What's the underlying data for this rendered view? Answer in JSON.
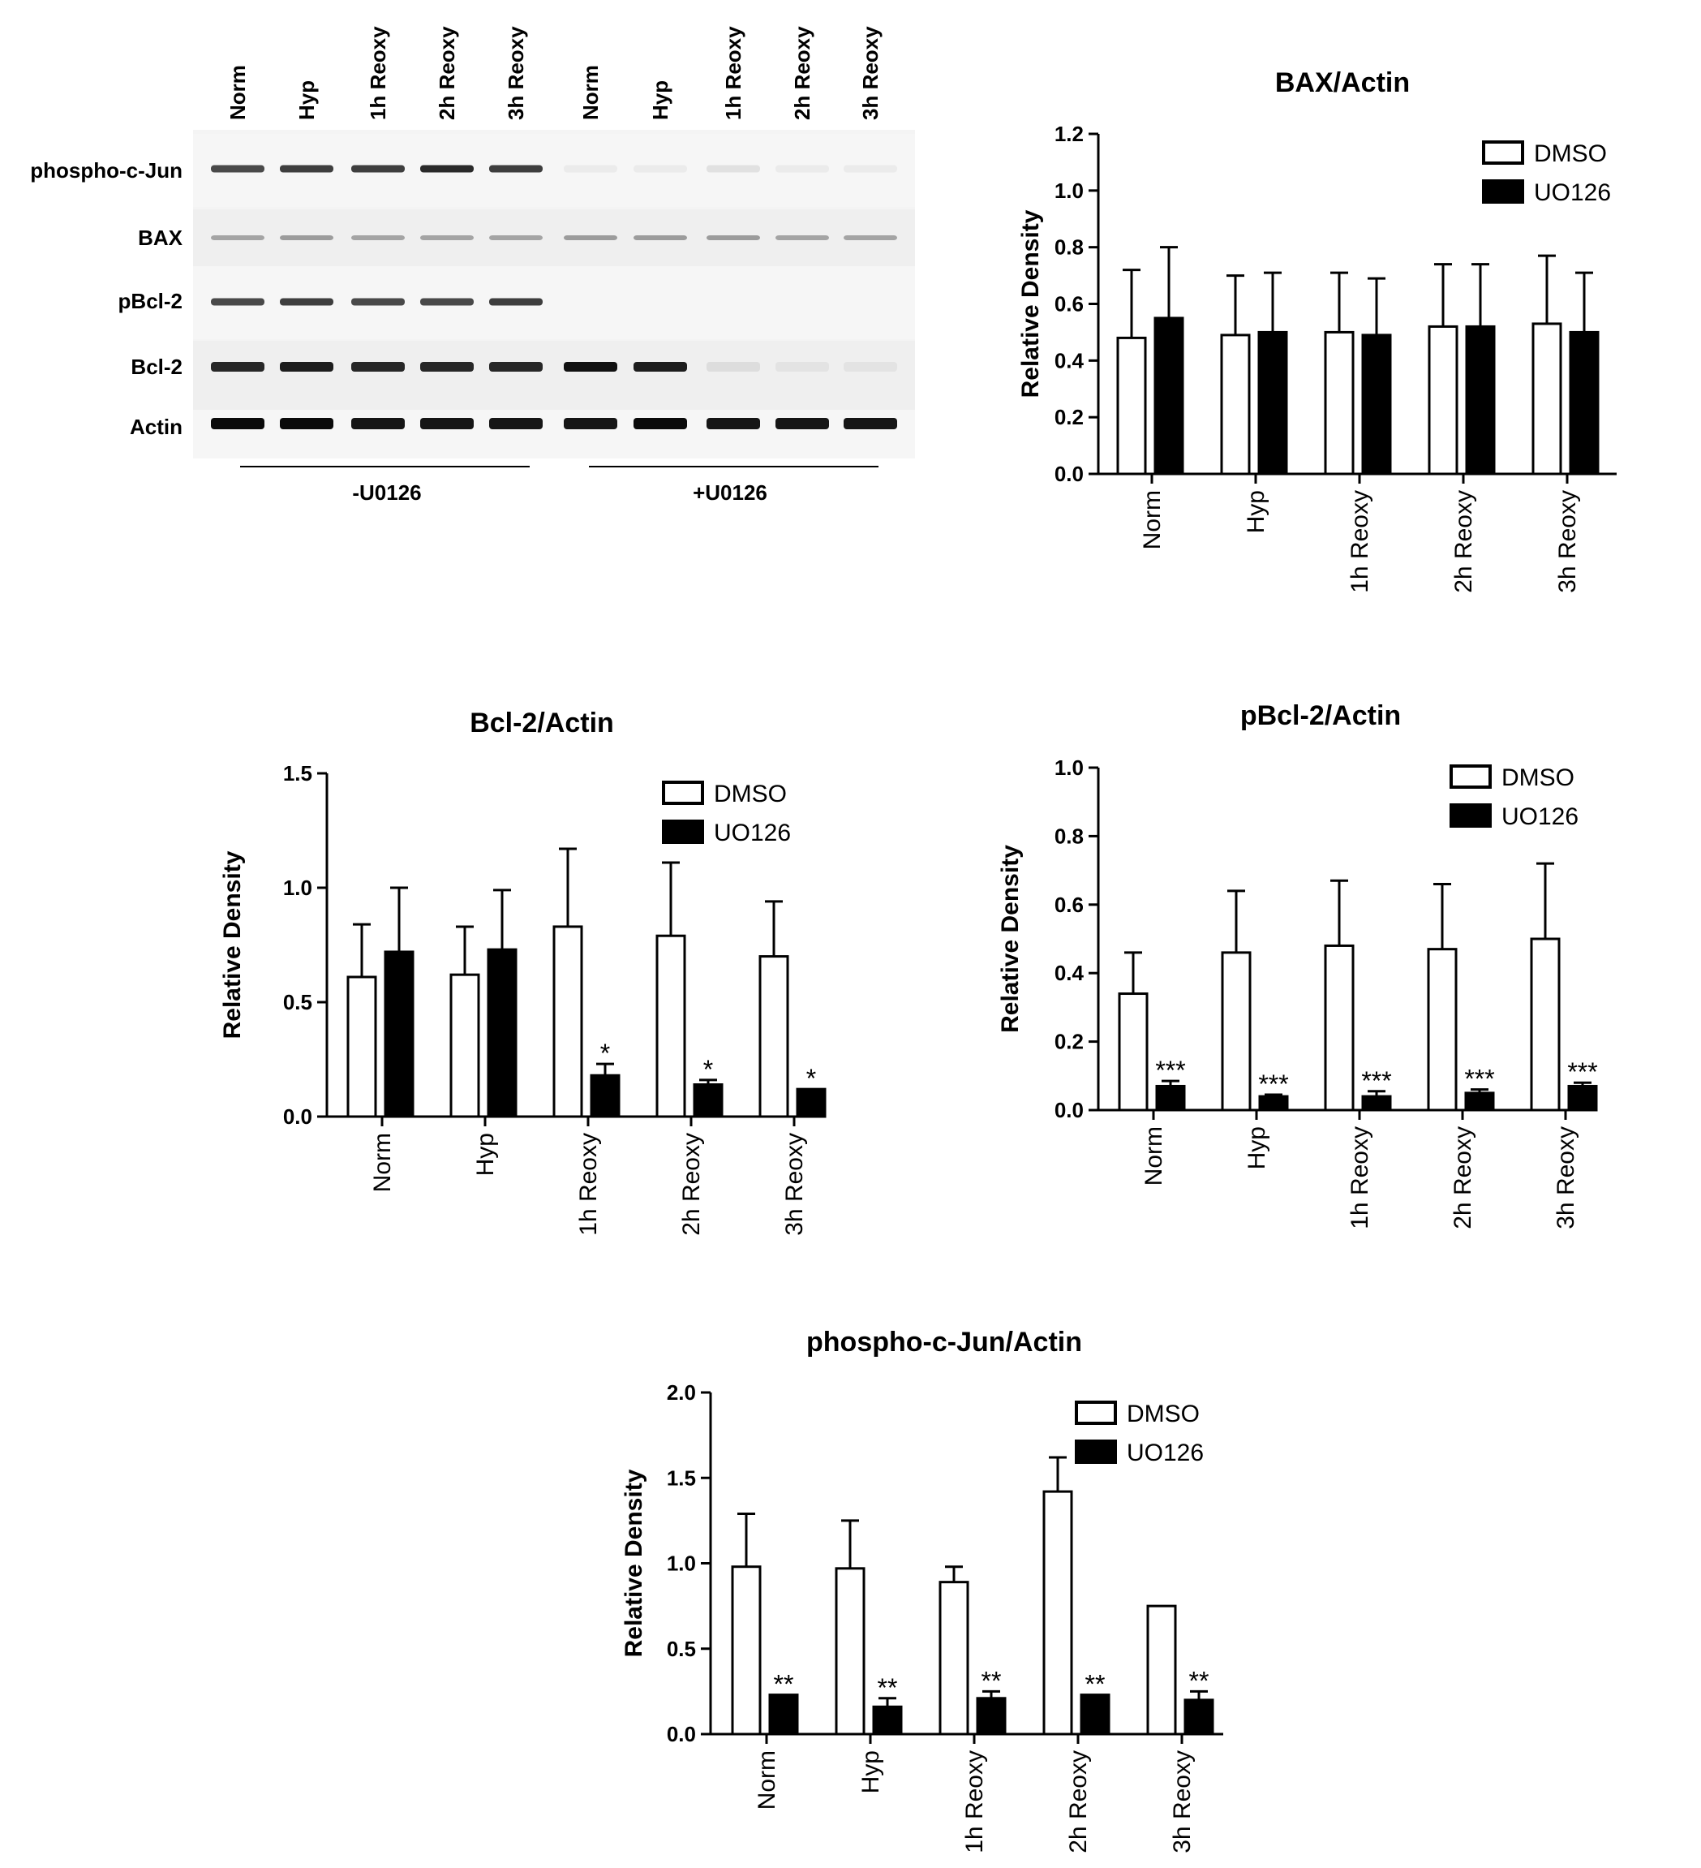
{
  "blot": {
    "lane_labels": [
      "Norm",
      "Hyp",
      "1h Reoxy",
      "2h Reoxy",
      "3h Reoxy",
      "Norm",
      "Hyp",
      "1h Reoxy",
      "2h Reoxy",
      "3h Reoxy"
    ],
    "row_labels": [
      "phospho-c-Jun",
      "BAX",
      "pBcl-2",
      "Bcl-2",
      "Actin"
    ],
    "group_labels": [
      "-U0126",
      "+U0126"
    ],
    "band_intensity": {
      "phospho-c-Jun": [
        0.85,
        0.9,
        0.9,
        1.0,
        0.9,
        0.05,
        0.05,
        0.1,
        0.05,
        0.05
      ],
      "BAX": [
        0.45,
        0.5,
        0.45,
        0.45,
        0.45,
        0.5,
        0.5,
        0.5,
        0.45,
        0.45
      ],
      "pBcl-2": [
        0.85,
        0.9,
        0.85,
        0.85,
        0.9,
        0,
        0,
        0,
        0,
        0
      ],
      "Bcl-2": [
        0.9,
        0.95,
        0.9,
        0.9,
        0.9,
        1.0,
        0.95,
        0.08,
        0.05,
        0.05
      ],
      "Actin": [
        1.0,
        1.0,
        0.95,
        0.95,
        0.95,
        0.95,
        1.0,
        0.95,
        0.95,
        0.95
      ]
    }
  },
  "chart_data": [
    {
      "type": "bar",
      "title": "BAX/Actin",
      "ylabel": "Relative Density",
      "xlabel": "",
      "categories": [
        "Norm",
        "Hyp",
        "1h Reoxy",
        "2h Reoxy",
        "3h Reoxy"
      ],
      "ylim": [
        0,
        1.2
      ],
      "yticks": [
        "0.0",
        "0.2",
        "0.4",
        "0.6",
        "0.8",
        "1.0",
        "1.2"
      ],
      "legend": "top-right",
      "series": [
        {
          "name": "DMSO",
          "color": "#ffffff",
          "values": [
            0.48,
            0.49,
            0.5,
            0.52,
            0.53
          ],
          "errors": [
            0.24,
            0.21,
            0.21,
            0.22,
            0.24
          ],
          "annotations": [
            "",
            "",
            "",
            "",
            ""
          ]
        },
        {
          "name": "UO126",
          "color": "#000000",
          "values": [
            0.55,
            0.5,
            0.49,
            0.52,
            0.5
          ],
          "errors": [
            0.25,
            0.21,
            0.2,
            0.22,
            0.21
          ],
          "annotations": [
            "",
            "",
            "",
            "",
            ""
          ]
        }
      ]
    },
    {
      "type": "bar",
      "title": "Bcl-2/Actin",
      "ylabel": "Relative Density",
      "xlabel": "",
      "categories": [
        "Norm",
        "Hyp",
        "1h Reoxy",
        "2h Reoxy",
        "3h Reoxy"
      ],
      "ylim": [
        0,
        1.5
      ],
      "yticks": [
        "0.0",
        "0.5",
        "1.0",
        "1.5"
      ],
      "legend": "top-right",
      "series": [
        {
          "name": "DMSO",
          "color": "#ffffff",
          "values": [
            0.61,
            0.62,
            0.83,
            0.79,
            0.7
          ],
          "errors": [
            0.23,
            0.21,
            0.34,
            0.32,
            0.24
          ],
          "annotations": [
            "",
            "",
            "",
            "",
            ""
          ]
        },
        {
          "name": "UO126",
          "color": "#000000",
          "values": [
            0.72,
            0.73,
            0.18,
            0.14,
            0.12
          ],
          "errors": [
            0.28,
            0.26,
            0.05,
            0.02,
            0.0
          ],
          "annotations": [
            "",
            "",
            "*",
            "*",
            "*"
          ]
        }
      ]
    },
    {
      "type": "bar",
      "title": "pBcl-2/Actin",
      "ylabel": "Relative Density",
      "xlabel": "",
      "categories": [
        "Norm",
        "Hyp",
        "1h Reoxy",
        "2h Reoxy",
        "3h Reoxy"
      ],
      "ylim": [
        0,
        1.0
      ],
      "yticks": [
        "0.0",
        "0.2",
        "0.4",
        "0.6",
        "0.8",
        "1.0"
      ],
      "legend": "top-right",
      "series": [
        {
          "name": "DMSO",
          "color": "#ffffff",
          "values": [
            0.34,
            0.46,
            0.48,
            0.47,
            0.5
          ],
          "errors": [
            0.12,
            0.18,
            0.19,
            0.19,
            0.22
          ],
          "annotations": [
            "",
            "",
            "",
            "",
            ""
          ]
        },
        {
          "name": "UO126",
          "color": "#000000",
          "values": [
            0.07,
            0.04,
            0.04,
            0.05,
            0.07
          ],
          "errors": [
            0.015,
            0.005,
            0.015,
            0.01,
            0.01
          ],
          "annotations": [
            "***",
            "***",
            "***",
            "***",
            "***"
          ]
        }
      ]
    },
    {
      "type": "bar",
      "title": "phospho-c-Jun/Actin",
      "ylabel": "Relative Density",
      "xlabel": "",
      "categories": [
        "Norm",
        "Hyp",
        "1h Reoxy",
        "2h Reoxy",
        "3h Reoxy"
      ],
      "ylim": [
        0,
        2.0
      ],
      "yticks": [
        "0.0",
        "0.5",
        "1.0",
        "1.5",
        "2.0"
      ],
      "legend": "top-right",
      "series": [
        {
          "name": "DMSO",
          "color": "#ffffff",
          "values": [
            0.98,
            0.97,
            0.89,
            1.42,
            0.75
          ],
          "errors": [
            0.31,
            0.28,
            0.09,
            0.2,
            0.0
          ],
          "annotations": [
            "",
            "",
            "",
            "",
            ""
          ]
        },
        {
          "name": "UO126",
          "color": "#000000",
          "values": [
            0.23,
            0.16,
            0.21,
            0.23,
            0.2
          ],
          "errors": [
            0.0,
            0.05,
            0.04,
            0.0,
            0.05
          ],
          "annotations": [
            "**",
            "**",
            "**",
            "**",
            "**"
          ]
        }
      ]
    }
  ]
}
